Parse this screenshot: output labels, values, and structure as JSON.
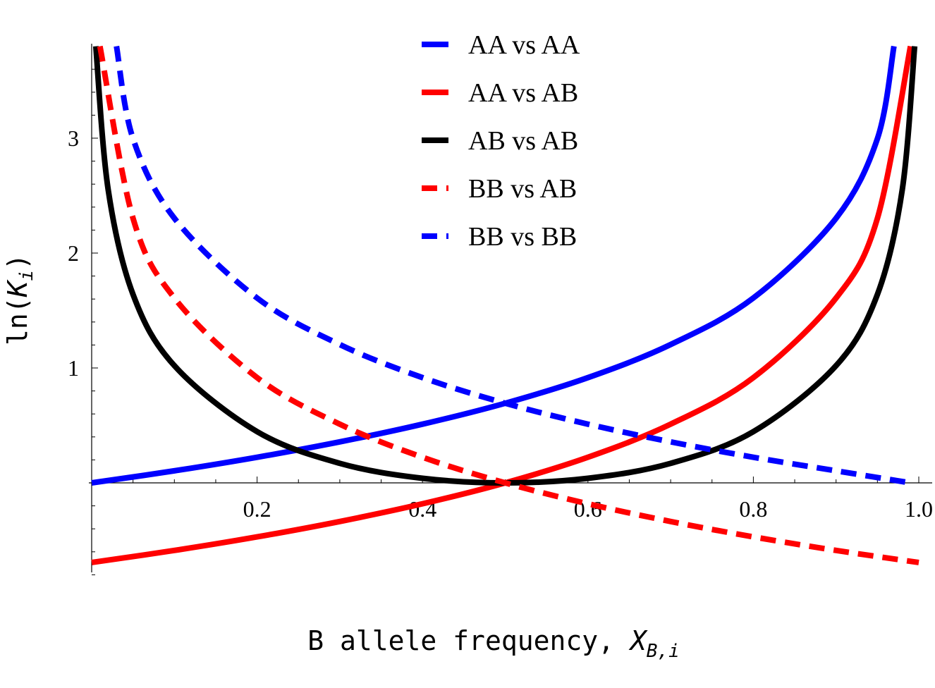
{
  "chart_data": {
    "type": "line",
    "xlabel": {
      "prefix": "B allele frequency, ",
      "var": "X",
      "sub": "B,i"
    },
    "ylabel": {
      "prefix": "ln(",
      "var": "K",
      "sub": "i",
      "suffix": ")"
    },
    "xlim": [
      0,
      1
    ],
    "ylim": [
      -0.8,
      3.8
    ],
    "x_ticks": [
      0.2,
      0.4,
      0.6,
      0.8,
      1.0
    ],
    "x_tick_labels": [
      "0.2",
      "0.4",
      "0.6",
      "0.8",
      "1.0"
    ],
    "y_ticks": [
      1,
      2,
      3
    ],
    "y_tick_labels": [
      "1",
      "2",
      "3"
    ],
    "grid": false,
    "legend_position": "top-center",
    "series": [
      {
        "name": "AA vs AA",
        "color": "#0000ff",
        "dash": "solid",
        "x": [
          0.0,
          0.1,
          0.2,
          0.3,
          0.4,
          0.5,
          0.6,
          0.7,
          0.8,
          0.9,
          0.95,
          0.97
        ],
        "y": [
          0.0,
          0.105,
          0.223,
          0.357,
          0.511,
          0.693,
          0.916,
          1.204,
          1.609,
          2.303,
          2.996,
          3.8
        ]
      },
      {
        "name": "AA vs AB",
        "color": "#ff0000",
        "dash": "solid",
        "x": [
          0.0,
          0.1,
          0.2,
          0.3,
          0.4,
          0.5,
          0.6,
          0.7,
          0.8,
          0.9,
          0.95,
          0.99
        ],
        "y": [
          -0.693,
          -0.588,
          -0.47,
          -0.336,
          -0.182,
          0.0,
          0.223,
          0.511,
          0.916,
          1.609,
          2.303,
          3.8
        ]
      },
      {
        "name": "AB vs AB",
        "color": "#000000",
        "dash": "solid",
        "x": [
          0.005,
          0.02,
          0.05,
          0.1,
          0.2,
          0.3,
          0.4,
          0.5,
          0.6,
          0.7,
          0.8,
          0.9,
          0.95,
          0.98,
          0.995
        ],
        "y": [
          3.8,
          2.55,
          1.64,
          1.02,
          0.446,
          0.17,
          0.04,
          0.0,
          0.04,
          0.17,
          0.446,
          1.02,
          1.64,
          2.55,
          3.8
        ]
      },
      {
        "name": "BB vs AB",
        "color": "#ff0000",
        "dash": "dashed",
        "x": [
          0.01,
          0.05,
          0.1,
          0.2,
          0.3,
          0.4,
          0.5,
          0.6,
          0.7,
          0.8,
          0.9,
          1.0
        ],
        "y": [
          3.8,
          2.303,
          1.609,
          0.916,
          0.511,
          0.223,
          0.0,
          -0.182,
          -0.336,
          -0.47,
          -0.588,
          -0.693
        ]
      },
      {
        "name": "BB vs BB",
        "color": "#0000ff",
        "dash": "dashed",
        "x": [
          0.03,
          0.05,
          0.1,
          0.2,
          0.3,
          0.4,
          0.5,
          0.6,
          0.7,
          0.8,
          0.9,
          0.99
        ],
        "y": [
          3.8,
          2.996,
          2.303,
          1.609,
          1.204,
          0.916,
          0.693,
          0.511,
          0.357,
          0.223,
          0.105,
          0.0
        ]
      }
    ]
  }
}
